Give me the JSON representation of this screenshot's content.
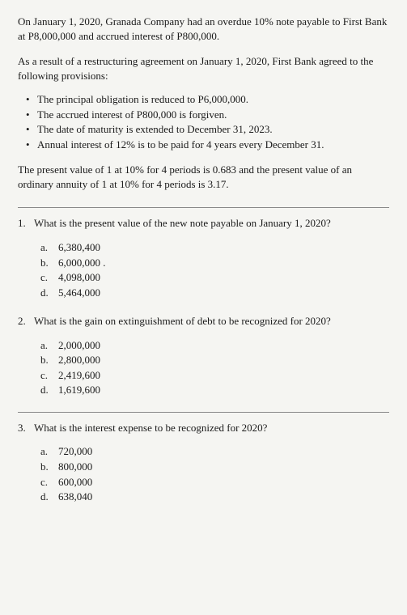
{
  "intro": "On January 1, 2020, Granada Company had an overdue 10% note payable to First Bank at P8,000,000 and accrued interest of P800,000.",
  "restructure": "As a result of a restructuring agreement on January 1, 2020, First Bank agreed to the following provisions:",
  "bullets": [
    "The principal obligation is reduced to P6,000,000.",
    "The accrued interest of P800,000 is forgiven.",
    "The date of maturity is extended to December 31, 2023.",
    "Annual interest of 12% is to be paid for 4 years every December 31."
  ],
  "pv_info": "The present value of 1 at 10% for 4 periods is 0.683 and the present value of an ordinary annuity of 1 at 10% for 4 periods is 3.17.",
  "questions": [
    {
      "num": "1.",
      "text": "What is the present value of the new note payable on January 1, 2020?",
      "options": [
        {
          "letter": "a.",
          "value": "6,380,400"
        },
        {
          "letter": "b.",
          "value": "6,000,000 ."
        },
        {
          "letter": "c.",
          "value": "4,098,000"
        },
        {
          "letter": "d.",
          "value": "5,464,000"
        }
      ]
    },
    {
      "num": "2.",
      "text": "What is the gain on extinguishment of debt to be recognized for 2020?",
      "options": [
        {
          "letter": "a.",
          "value": "2,000,000"
        },
        {
          "letter": "b.",
          "value": "2,800,000"
        },
        {
          "letter": "c.",
          "value": "2,419,600"
        },
        {
          "letter": "d.",
          "value": "1,619,600"
        }
      ]
    },
    {
      "num": "3.",
      "text": "What is the interest expense to be recognized for 2020?",
      "options": [
        {
          "letter": "a.",
          "value": "720,000"
        },
        {
          "letter": "b.",
          "value": "800,000"
        },
        {
          "letter": "c.",
          "value": "600,000"
        },
        {
          "letter": "d.",
          "value": "638,040"
        }
      ]
    }
  ]
}
